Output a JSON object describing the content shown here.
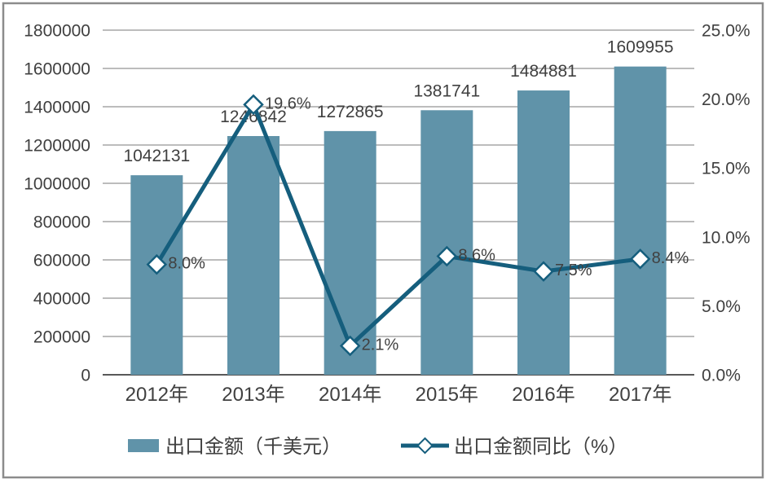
{
  "chart_data": {
    "type": "combo-bar-line",
    "title": "",
    "categories": [
      "2012年",
      "2013年",
      "2014年",
      "2015年",
      "2016年",
      "2017年"
    ],
    "series": [
      {
        "name": "出口金额（千美元）",
        "type": "bar",
        "color": "#6093A9",
        "axis": "left",
        "values": [
          1042131,
          1246842,
          1272865,
          1381741,
          1484881,
          1609955
        ],
        "data_labels": [
          "1042131",
          "1246842",
          "1272865",
          "1381741",
          "1484881",
          "1609955"
        ]
      },
      {
        "name": "出口金额同比（%）",
        "type": "line",
        "color": "#155E7D",
        "marker": "diamond-white",
        "axis": "right",
        "values": [
          8.0,
          19.6,
          2.1,
          8.6,
          7.5,
          8.4
        ],
        "data_labels": [
          "8.0%",
          "19.6%",
          "2.1%",
          "8.6%",
          "7.5%",
          "8.4%"
        ]
      }
    ],
    "left_axis": {
      "min": 0,
      "max": 1800000,
      "tick_labels": [
        "0",
        "200000",
        "400000",
        "600000",
        "800000",
        "1000000",
        "1200000",
        "1400000",
        "1600000",
        "1800000"
      ]
    },
    "right_axis": {
      "min": 0,
      "max": 25,
      "tick_labels": [
        "0.0%",
        "5.0%",
        "10.0%",
        "15.0%",
        "20.0%",
        "25.0%"
      ]
    },
    "grid": true,
    "legend_position": "bottom"
  },
  "colors": {
    "grid": "#A6A6A6",
    "axis": "#595959",
    "text": "#404040",
    "frame": "#8C8C8C",
    "background": "#FFFFFF",
    "marker_fill": "#FFFFFF"
  }
}
